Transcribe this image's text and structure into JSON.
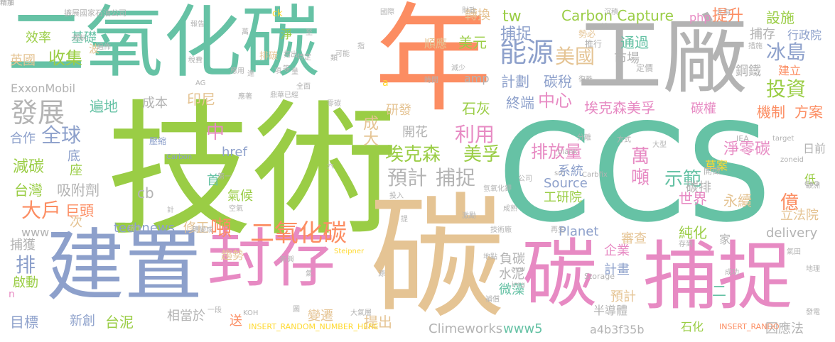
{
  "colors": {
    "green": "#9ACD45",
    "teal": "#66C2A5",
    "orange": "#FC8D62",
    "periwinkle": "#8DA0CB",
    "pink": "#E78AC3",
    "tan": "#E5C494",
    "gray": "#B3B3B3",
    "yellow": "#FFD92F"
  },
  "words": [
    {
      "text": "技術",
      "color": "green"
    },
    {
      "text": "CCS",
      "color": "teal"
    },
    {
      "text": "年",
      "color": "orange"
    },
    {
      "text": "碳",
      "color": "tan"
    },
    {
      "text": "二氧化碳",
      "color": "teal"
    },
    {
      "text": "工廠",
      "color": "gray"
    },
    {
      "text": "建置",
      "color": "periwinkle"
    },
    {
      "text": "封存",
      "color": "pink"
    },
    {
      "text": "碳",
      "color": "pink"
    },
    {
      "text": "捕捉",
      "color": "pink"
    },
    {
      "text": "能源",
      "color": "periwinkle"
    },
    {
      "text": "美國",
      "color": "tan"
    },
    {
      "text": "Carbon Capture",
      "color": "green"
    },
    {
      "text": "投資",
      "color": "green"
    },
    {
      "text": "冰島",
      "color": "periwinkle"
    },
    {
      "text": "發展",
      "color": "gray"
    },
    {
      "text": "全球",
      "color": "periwinkle"
    },
    {
      "text": "埃克森美孚",
      "color": "pink"
    },
    {
      "text": "埃克森",
      "color": "green"
    },
    {
      "text": "美孚",
      "color": "green"
    },
    {
      "text": "預計",
      "color": "gray"
    },
    {
      "text": "捕捉",
      "color": "gray"
    },
    {
      "text": "萬",
      "color": "pink"
    },
    {
      "text": "噸",
      "color": "pink"
    },
    {
      "text": "示範",
      "color": "teal"
    },
    {
      "text": "噸",
      "color": "orange"
    },
    {
      "text": "二氧化碳",
      "color": "orange"
    },
    {
      "text": "收集",
      "color": "green"
    },
    {
      "text": "基礎",
      "color": "teal"
    },
    {
      "text": "效率",
      "color": "green"
    },
    {
      "text": "英國",
      "color": "tan"
    },
    {
      "text": "ExxonMobil",
      "color": "gray"
    },
    {
      "text": "大戶",
      "color": "orange"
    },
    {
      "text": "捕獲",
      "color": "gray"
    },
    {
      "text": "排",
      "color": "periwinkle"
    },
    {
      "text": "啟動",
      "color": "green"
    },
    {
      "text": "目標",
      "color": "periwinkle"
    },
    {
      "text": "台泥",
      "color": "green"
    },
    {
      "text": "新創",
      "color": "periwinkle"
    },
    {
      "text": "減碳",
      "color": "green"
    },
    {
      "text": "台灣",
      "color": "green"
    },
    {
      "text": "吸附劑",
      "color": "gray"
    },
    {
      "text": "底",
      "color": "periwinkle"
    },
    {
      "text": "座",
      "color": "green"
    },
    {
      "text": "巨頭",
      "color": "orange"
    },
    {
      "text": "次",
      "color": "tan"
    },
    {
      "text": "www",
      "color": "gray"
    },
    {
      "text": "technews",
      "color": "periwinkle"
    },
    {
      "text": "修正",
      "color": "tan"
    },
    {
      "text": "相當於",
      "color": "gray"
    },
    {
      "text": "轉換",
      "color": "tan"
    },
    {
      "text": "tw",
      "color": "green"
    },
    {
      "text": "捕捉",
      "color": "periwinkle"
    },
    {
      "text": "美元",
      "color": "green"
    },
    {
      "text": "計劃",
      "color": "periwinkle"
    },
    {
      "text": "碳稅",
      "color": "periwinkle"
    },
    {
      "text": "中心",
      "color": "pink"
    },
    {
      "text": "研發",
      "color": "tan"
    },
    {
      "text": "石灰",
      "color": "green"
    },
    {
      "text": "終端",
      "color": "periwinkle"
    },
    {
      "text": "成大",
      "color": "tan"
    },
    {
      "text": "開花",
      "color": "gray"
    },
    {
      "text": "利用",
      "color": "pink"
    },
    {
      "text": "排放量",
      "color": "pink"
    },
    {
      "text": "系統",
      "color": "periwinkle"
    },
    {
      "text": "Source",
      "color": "periwinkle"
    },
    {
      "text": "工研院",
      "color": "green"
    },
    {
      "text": "Planet",
      "color": "periwinkle"
    },
    {
      "text": "企業",
      "color": "pink"
    },
    {
      "text": "計畫",
      "color": "periwinkle"
    },
    {
      "text": "審查",
      "color": "tan"
    },
    {
      "text": "純化",
      "color": "green"
    },
    {
      "text": "負碳",
      "color": "gray"
    },
    {
      "text": "水泥",
      "color": "gray"
    },
    {
      "text": "微藻",
      "color": "teal"
    },
    {
      "text": "www5",
      "color": "teal"
    },
    {
      "text": "Climeworks",
      "color": "gray"
    },
    {
      "text": "a4b3f35b",
      "color": "gray"
    },
    {
      "text": "提出",
      "color": "tan"
    },
    {
      "text": "變遷",
      "color": "tan"
    },
    {
      "text": "設施",
      "color": "green"
    },
    {
      "text": "php",
      "color": "pink"
    },
    {
      "text": "提升",
      "color": "orange"
    },
    {
      "text": "捕存",
      "color": "gray"
    },
    {
      "text": "通過",
      "color": "teal"
    },
    {
      "text": "市場",
      "color": "gray"
    },
    {
      "text": "鋼鐵",
      "color": "gray"
    },
    {
      "text": "碳權",
      "color": "pink"
    },
    {
      "text": "機制",
      "color": "orange"
    },
    {
      "text": "方案",
      "color": "orange"
    },
    {
      "text": "淨零碳",
      "color": "pink"
    },
    {
      "text": "碳排",
      "color": "gray"
    },
    {
      "text": "世界",
      "color": "pink"
    },
    {
      "text": "永續",
      "color": "tan"
    },
    {
      "text": "億",
      "color": "orange"
    },
    {
      "text": "低",
      "color": "green"
    },
    {
      "text": "立法院",
      "color": "tan"
    },
    {
      "text": "delivery",
      "color": "gray"
    },
    {
      "text": "家",
      "color": "gray"
    },
    {
      "text": "二",
      "color": "teal"
    },
    {
      "text": "預計",
      "color": "tan"
    },
    {
      "text": "半導體",
      "color": "gray"
    },
    {
      "text": "石化",
      "color": "green"
    },
    {
      "text": "因應法",
      "color": "gray"
    },
    {
      "text": "中",
      "color": "pink"
    },
    {
      "text": "首",
      "color": "teal"
    },
    {
      "text": "cb",
      "color": "gray"
    },
    {
      "text": "href",
      "color": "periwinkle"
    },
    {
      "text": "氣候",
      "color": "green"
    },
    {
      "text": "成本",
      "color": "gray"
    },
    {
      "text": "印尼",
      "color": "tan"
    },
    {
      "text": "遍地",
      "color": "teal"
    },
    {
      "text": "合作",
      "color": "periwinkle"
    },
    {
      "text": "趨勢",
      "color": "tan"
    },
    {
      "text": "送",
      "color": "orange"
    },
    {
      "text": "n",
      "color": "pink"
    },
    {
      "text": "順應",
      "color": "tan"
    },
    {
      "text": "行政院",
      "color": "periwinkle"
    },
    {
      "text": "建立",
      "color": "orange"
    },
    {
      "text": "日前",
      "color": "gray"
    },
    {
      "text": "草案",
      "color": "yellow"
    },
    {
      "text": "開徵",
      "color": "gray"
    },
    {
      "text": "a",
      "color": "yellow"
    },
    {
      "text": "amp",
      "color": "gray"
    },
    {
      "text": "ck",
      "color": "yellow"
    },
    {
      "text": "淨",
      "color": "green"
    },
    {
      "text": "排碳",
      "color": "tan"
    },
    {
      "text": "波",
      "color": "tan"
    },
    {
      "text": "壓縮",
      "color": "periwinkle"
    },
    {
      "text": "INSERT_RANDOM_NUMBER_HERE",
      "color": "yellow"
    },
    {
      "text": "INSERT_RANDO",
      "color": "orange"
    },
    {
      "text": "Steipner",
      "color": "yellow"
    },
    {
      "text": "Storage",
      "color": "gray"
    },
    {
      "text": "Carbfix",
      "color": "gray"
    },
    {
      "text": "Carbon",
      "color": "periwinkle"
    },
    {
      "text": "target",
      "color": "gray"
    },
    {
      "text": "zoneid",
      "color": "gray"
    },
    {
      "text": "src",
      "color": "gray"
    },
    {
      "text": "_blank",
      "color": "gray"
    },
    {
      "text": "IEA",
      "color": "gray"
    },
    {
      "text": "CaO",
      "color": "gray"
    },
    {
      "text": "KOH",
      "color": "gray"
    },
    {
      "text": "AG",
      "color": "gray"
    },
    {
      "text": "img",
      "color": "gray"
    },
    {
      "text": "avw",
      "color": "gray"
    },
    {
      "text": "擴展國家石油公司",
      "color": "gray"
    },
    {
      "text": "大氣層",
      "color": "gray"
    },
    {
      "text": "勢必",
      "color": "tan"
    },
    {
      "text": "推行",
      "color": "gray"
    },
    {
      "text": "定價",
      "color": "gray"
    },
    {
      "text": "天然",
      "color": "gray"
    },
    {
      "text": "歐洲",
      "color": "gray"
    },
    {
      "text": "發電",
      "color": "gray"
    },
    {
      "text": "地理",
      "color": "gray"
    },
    {
      "text": "成功",
      "color": "gray"
    },
    {
      "text": "再生",
      "color": "gray"
    },
    {
      "text": "方式",
      "color": "gray"
    },
    {
      "text": "公司",
      "color": "gray"
    },
    {
      "text": "報告",
      "color": "gray"
    },
    {
      "text": "第一",
      "color": "gray"
    },
    {
      "text": "國際",
      "color": "gray"
    },
    {
      "text": "北海",
      "color": "gray"
    },
    {
      "text": "沉積",
      "color": "gray"
    },
    {
      "text": "存到",
      "color": "gray"
    },
    {
      "text": "氣田",
      "color": "gray"
    },
    {
      "text": "大型",
      "color": "gray"
    },
    {
      "text": "分離",
      "color": "gray"
    },
    {
      "text": "技術廠",
      "color": "gray"
    },
    {
      "text": "轉變成",
      "color": "gray"
    },
    {
      "text": "一段",
      "color": "gray"
    },
    {
      "text": "新興",
      "color": "gray"
    },
    {
      "text": "可能",
      "color": "gray"
    },
    {
      "text": "特定",
      "color": "gray"
    },
    {
      "text": "遍佈",
      "color": "gray"
    },
    {
      "text": "燃料",
      "color": "gray"
    },
    {
      "text": "指出",
      "color": "gray"
    },
    {
      "text": "投入",
      "color": "gray"
    },
    {
      "text": "瑞士",
      "color": "gray"
    },
    {
      "text": "稅費",
      "color": "gray"
    },
    {
      "text": "措施",
      "color": "gray"
    },
    {
      "text": "減少",
      "color": "gray"
    },
    {
      "text": "復甦",
      "color": "gray"
    },
    {
      "text": "時間",
      "color": "gray"
    },
    {
      "text": "補償",
      "color": "gray"
    },
    {
      "text": "地點",
      "color": "gray"
    },
    {
      "text": "空氣",
      "color": "gray"
    },
    {
      "text": "成熟",
      "color": "gray"
    },
    {
      "text": "激勵",
      "color": "gray"
    },
    {
      "text": "應用",
      "color": "gray"
    },
    {
      "text": "提",
      "color": "gray"
    },
    {
      "text": "計",
      "color": "gray"
    },
    {
      "text": "圖",
      "color": "gray"
    },
    {
      "text": "達",
      "color": "gray"
    },
    {
      "text": "至",
      "color": "gray"
    },
    {
      "text": "項",
      "color": "gray"
    },
    {
      "text": "指",
      "color": "gray"
    },
    {
      "text": "六",
      "color": "gray"
    },
    {
      "text": "類",
      "color": "gray"
    },
    {
      "text": "源",
      "color": "gray"
    },
    {
      "text": "等",
      "color": "gray"
    },
    {
      "text": "量",
      "color": "gray"
    },
    {
      "text": "氣",
      "color": "gray"
    },
    {
      "text": "萬",
      "color": "gray"
    },
    {
      "text": "財政",
      "color": "gray"
    },
    {
      "text": "鼎華",
      "color": "gray"
    },
    {
      "text": "氫氧化鉀",
      "color": "gray"
    },
    {
      "text": "應著",
      "color": "gray"
    },
    {
      "text": "全面",
      "color": "gray"
    },
    {
      "text": "零碳",
      "color": "gray"
    },
    {
      "text": "已經",
      "color": "gray"
    },
    {
      "text": "增加",
      "color": "gray"
    },
    {
      "text": "精準",
      "color": "gray"
    }
  ]
}
